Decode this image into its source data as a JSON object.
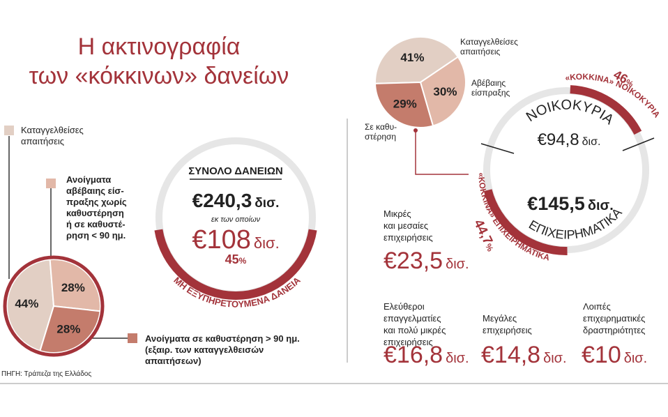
{
  "title": [
    "Η ακτινογραφία",
    "των «κόκκινων» δανείων"
  ],
  "source": "ΠΗΓΗ: Τράπεζα της Ελλάδος",
  "colors": {
    "accent": "#a3333a",
    "ring_grey": "#e6e6e6",
    "light": "#e2cfc4",
    "mid": "#e2b8a8",
    "dark": "#c47c6c"
  },
  "left_legend": {
    "denounced": [
      "Καταγγελθείσες",
      "απαιτήσεις"
    ],
    "uncertain": [
      "Ανοίγματα",
      "αβέβαιης είσ-",
      "πραξης χωρίς",
      "καθυστέρηση",
      "ή σε καθυστέ-",
      "ρηση < 90 ημ."
    ],
    "overdue": [
      "Ανοίγματα σε καθυστέρηση > 90 ημ.",
      "(εξαιρ. των καταγγελθεισών",
      "απαιτήσεων)"
    ]
  },
  "total": {
    "heading": "ΣΥΝΟΛΟ ΔΑΝΕΙΩΝ",
    "amount": "€240,3",
    "amount_unit": "δισ.",
    "of_which": "εκ των οποίων",
    "npl_amount": "€108",
    "npl_unit": "δισ.",
    "npl_pct": "45",
    "npl_pct_sign": "%",
    "npl_label": "ΜΗ ΕΞΥΠΗΡΕΤΟΥΜΕΝΑ ΔΑΝΕΙΑ",
    "npl_share": 0.45
  },
  "right_pie_labels": {
    "denounced": [
      "Καταγγελθείσες",
      "απαιτήσεις"
    ],
    "uncertain": [
      "Αβέβαιης",
      "είσπραξης"
    ],
    "overdue": [
      "Σε καθυ-",
      "στέρηση"
    ]
  },
  "households": {
    "label": "ΝΟΙΚΟΚΥΡΙΑ",
    "amount": "€94,8",
    "unit": "δισ.",
    "pct": "46",
    "pct_sign": "%",
    "red_label": "«ΚΟΚΚΙΝΑ» ΝΟΙΚΟΚΥΡΙΑ",
    "npl_share": 0.46
  },
  "business": {
    "amount": "€145,5",
    "unit": "δισ.",
    "label": "ΕΠΙΧΕΙΡΗΜΑΤΙΚΑ",
    "pct": "44,7",
    "pct_sign": "%",
    "red_label": "«ΚΟΚΚΙΝΑ» ΕΠΙΧΕΙΡΗΜΑΤΙΚΑ",
    "npl_share": 0.447
  },
  "segments": [
    {
      "label": [
        "Μικρές",
        "και μεσαίες",
        "επιχειρήσεις"
      ],
      "amount": "€23,5",
      "unit": "δισ."
    },
    {
      "label": [
        "Ελεύθεροι",
        "επαγγελματίες",
        "και πολύ μικρές",
        "επιχειρήσεις"
      ],
      "amount": "€16,8",
      "unit": "δισ."
    },
    {
      "label": [
        "Μεγάλες",
        "επιχειρήσεις"
      ],
      "amount": "€14,8",
      "unit": "δισ."
    },
    {
      "label": [
        "Λοιπές",
        "επιχειρηματικές",
        "δραστηριότητες"
      ],
      "amount": "€10",
      "unit": "δισ."
    }
  ],
  "chart_data": [
    {
      "type": "pie",
      "categories": [
        "Καταγγελθείσες απαιτήσεις",
        "Ανοίγματα αβέβαιης είσπραξης χωρίς καθυστέρηση ή σε καθυστέρηση < 90 ημ.",
        "Ανοίγματα σε καθυστέρηση > 90 ημ. (εξαιρ. των καταγγελθεισών απαιτήσεων)"
      ],
      "values": [
        44,
        28,
        28
      ],
      "labels": [
        "44%",
        "28%",
        "28%"
      ]
    },
    {
      "type": "pie",
      "categories": [
        "Καταγγελθείσες απαιτήσεις",
        "Αβέβαιης είσπραξης",
        "Σε καθυστέρηση"
      ],
      "values": [
        41,
        30,
        29
      ],
      "labels": [
        "41%",
        "30%",
        "29%"
      ]
    }
  ]
}
